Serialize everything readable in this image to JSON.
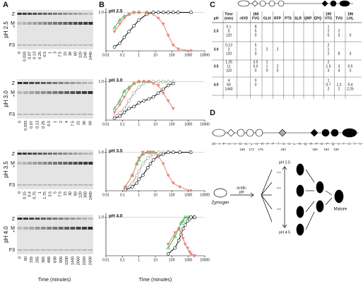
{
  "panels": [
    "A",
    "B",
    "C",
    "D"
  ],
  "gel_xlabel": "Time (minutes)",
  "plot_xlabel": "Time (minutes)",
  "gels": [
    {
      "ph": "pH 2.5",
      "markers": [
        "Z",
        "M",
        "*",
        "F3"
      ],
      "lanes": [
        "0",
        "0.033",
        "0.07",
        "0.13",
        "0.25",
        "0.5",
        "1",
        "3",
        "7.5",
        "15",
        "30",
        "60",
        "120",
        "240",
        "1440"
      ]
    },
    {
      "ph": "pH 3.0",
      "markers": [
        "Z",
        "M",
        "*",
        "F3"
      ],
      "lanes": [
        "0",
        "0.033",
        "0.07",
        "0.13",
        "0.25",
        "0.5",
        "1",
        "2",
        "4",
        "7.5",
        "15",
        "30",
        "60"
      ]
    },
    {
      "ph": "pH 3.5",
      "markers": [
        "Z",
        "M",
        "*",
        "F3"
      ],
      "lanes": [
        "0",
        "0.15",
        "0.4",
        "0.75",
        "1",
        "1.75",
        "3.5",
        "5",
        "7.5",
        "15",
        "30",
        "60",
        "120",
        "300",
        "1400"
      ]
    },
    {
      "ph": "pH 4.0",
      "markers": [
        "Z",
        "M",
        "*",
        "F3"
      ],
      "lanes": [
        "0",
        "60",
        "155",
        "265",
        "365",
        "480",
        "638",
        "900",
        "1200",
        "1440",
        "2060",
        "2250",
        "2400"
      ]
    }
  ],
  "chart_data": [
    {
      "type": "line",
      "label": "pH 2.5",
      "log_x": true,
      "xlim": [
        0.01,
        10000
      ],
      "ylim": [
        0,
        1.1
      ],
      "xticks": [
        0.01,
        0.1,
        1,
        10,
        100,
        1000,
        10000
      ],
      "yticks": [
        {
          "value": 1,
          "label": "1.0"
        }
      ],
      "x": [
        0.033,
        0.07,
        0.13,
        0.25,
        0.5,
        1,
        3,
        7.5,
        15,
        30,
        60,
        120,
        240,
        1440
      ],
      "series": [
        {
          "color": "#3cb44b",
          "marker": "triangle-up",
          "values": [
            0.6,
            0.8,
            0.9,
            0.95,
            1,
            1,
            1,
            1,
            1,
            1,
            1,
            1,
            1,
            1
          ]
        },
        {
          "color": "#000000",
          "marker": "circle",
          "values": [
            0.1,
            0.2,
            0.35,
            0.5,
            0.65,
            0.8,
            0.95,
            1,
            1,
            1,
            1,
            1,
            1,
            1
          ]
        },
        {
          "color": "#e8837a",
          "marker": "triangle-down",
          "values": [
            0.5,
            0.7,
            0.85,
            0.95,
            1,
            1,
            1,
            0.95,
            0.85,
            0.7,
            0.4,
            0.15,
            0.05,
            0
          ]
        }
      ]
    },
    {
      "type": "line",
      "label": "pH 3.0",
      "log_x": true,
      "xlim": [
        0.01,
        10000
      ],
      "ylim": [
        0,
        1.1
      ],
      "xticks": [
        0.01,
        0.1,
        1,
        10,
        100,
        1000,
        10000
      ],
      "yticks": [
        {
          "value": 1,
          "label": "1.0"
        }
      ],
      "x": [
        0.033,
        0.07,
        0.13,
        0.25,
        0.5,
        1,
        2,
        4,
        7.5,
        15,
        30,
        60,
        120
      ],
      "series": [
        {
          "color": "#3cb44b",
          "marker": "triangle-up",
          "values": [
            0.3,
            0.5,
            0.75,
            0.85,
            0.95,
            1,
            1,
            1,
            1,
            1,
            1,
            1,
            1
          ]
        },
        {
          "color": "#999999",
          "marker": "circle",
          "values": [
            0.1,
            0.2,
            0.3,
            0.5,
            0.7,
            0.85,
            0.95,
            1,
            1,
            1,
            1,
            1,
            1
          ]
        },
        {
          "color": "#000000",
          "marker": "circle",
          "values": [
            0.05,
            0.1,
            0.2,
            0.3,
            0.35,
            0.45,
            0.5,
            0.55,
            0.6,
            0.7,
            0.8,
            0.9,
            0.95
          ]
        },
        {
          "color": "#e8837a",
          "marker": "triangle-down",
          "values": [
            0.2,
            0.4,
            0.6,
            0.8,
            0.95,
            1,
            1,
            1,
            0.95,
            0.9,
            0.7,
            0.5,
            0.3
          ]
        }
      ]
    },
    {
      "type": "line",
      "label": "pH 3.5",
      "log_x": true,
      "xlim": [
        0.01,
        10000
      ],
      "ylim": [
        0,
        1.1
      ],
      "xticks": [
        0.01,
        0.1,
        1,
        10,
        100,
        1000,
        10000
      ],
      "yticks": [
        {
          "value": 1,
          "label": "1.0"
        }
      ],
      "x": [
        0.15,
        0.4,
        0.75,
        1,
        1.75,
        3.5,
        5,
        7.5,
        15,
        30,
        60,
        120,
        300,
        1400
      ],
      "series": [
        {
          "color": "#3cb44b",
          "marker": "triangle-up",
          "values": [
            0.1,
            0.4,
            0.7,
            0.8,
            0.95,
            1,
            1,
            1,
            1,
            1,
            1,
            1,
            1,
            1
          ]
        },
        {
          "color": "#999999",
          "marker": "circle",
          "values": [
            0.05,
            0.2,
            0.4,
            0.5,
            0.7,
            0.85,
            0.9,
            0.95,
            1,
            1,
            1,
            1,
            1,
            1
          ]
        },
        {
          "color": "#000000",
          "marker": "circle",
          "values": [
            0.02,
            0.1,
            0.2,
            0.3,
            0.4,
            0.6,
            0.7,
            0.8,
            0.9,
            0.95,
            1,
            1,
            1,
            1
          ]
        },
        {
          "color": "#e8837a",
          "marker": "triangle-down",
          "values": [
            0.1,
            0.4,
            0.7,
            0.85,
            1,
            1,
            1,
            1,
            0.9,
            0.7,
            0.4,
            0.2,
            0.1,
            0
          ]
        }
      ]
    },
    {
      "type": "line",
      "label": "pH 4.0",
      "log_x": true,
      "xlim": [
        0.01,
        10000
      ],
      "ylim": [
        0,
        1.1
      ],
      "xticks": [
        0.01,
        0.1,
        1,
        10,
        100,
        1000,
        10000
      ],
      "yticks": [
        {
          "value": 1,
          "label": "1.0"
        }
      ],
      "x": [
        60,
        155,
        265,
        365,
        480,
        638,
        900,
        1200,
        1440,
        2250,
        2400
      ],
      "series": [
        {
          "color": "#3cb44b",
          "marker": "triangle-up",
          "values": [
            0.2,
            0.5,
            0.7,
            0.85,
            0.9,
            1,
            1,
            1,
            1,
            1,
            1
          ]
        },
        {
          "color": "#000000",
          "marker": "circle",
          "values": [
            0.05,
            0.2,
            0.4,
            0.55,
            0.7,
            0.8,
            0.9,
            0.95,
            1,
            1,
            1
          ]
        },
        {
          "color": "#e8837a",
          "marker": "triangle-down",
          "values": [
            0.3,
            0.6,
            0.7,
            0.6,
            0.45,
            0.3,
            0.2,
            0.1,
            0.05,
            0,
            0
          ]
        }
      ]
    }
  ],
  "table": {
    "header": [
      [
        "pH"
      ],
      [
        "Time",
        "(min)"
      ],
      [
        "-HVD"
      ],
      [
        "168",
        "FVG"
      ],
      [
        "GLH"
      ],
      [
        "RFP"
      ],
      [
        "PTS"
      ],
      [
        "SLR"
      ],
      [
        "QRP"
      ],
      [
        "EPQ"
      ],
      [
        "190",
        "VTG"
      ],
      [
        "TVG"
      ],
      [
        "196",
        "LHL"
      ]
    ],
    "rows": [
      {
        "cells": [
          [
            null,
            "2.5"
          ],
          [
            "0.1",
            "5",
            "120"
          ],
          [
            null
          ],
          [
            "8",
            "5",
            "0"
          ],
          [
            null
          ],
          [
            null
          ],
          [
            null
          ],
          [
            null
          ],
          [
            null
          ],
          [
            null
          ],
          [
            "1",
            "2",
            "5"
          ],
          [
            null,
            "2",
            "3"
          ],
          [
            null,
            null,
            "0"
          ]
        ]
      },
      {
        "cells": [
          [
            null,
            "3.0"
          ],
          [
            "0.13",
            "2",
            "120"
          ],
          [
            null
          ],
          [
            "5",
            "1",
            "0"
          ],
          [
            null,
            "2"
          ],
          [
            null,
            "2"
          ],
          [
            null
          ],
          [
            null
          ],
          [
            null
          ],
          [
            null
          ],
          [
            "2",
            "1",
            "2"
          ],
          [
            null,
            null,
            "8"
          ],
          [
            null,
            null,
            "3"
          ]
        ]
      },
      {
        "cells": [
          [
            null,
            "3.5"
          ],
          [
            "1.25",
            "11",
            "120"
          ],
          [
            null
          ],
          [
            "3.5",
            "0.5",
            "0"
          ],
          [
            "1",
            "1",
            "0"
          ],
          [
            null,
            "2",
            "0"
          ],
          [
            null
          ],
          [
            null
          ],
          [
            null
          ],
          [
            null
          ],
          [
            "2",
            "1.5",
            "3"
          ],
          [
            null,
            "3",
            "4"
          ],
          [
            null,
            "0.5",
            "3"
          ]
        ]
      },
      {
        "cells": [
          [
            null,
            "4.0"
          ],
          [
            "4",
            "60",
            "1440"
          ],
          [
            null
          ],
          [
            "0",
            "0"
          ],
          [
            null
          ],
          [
            null
          ],
          [
            null
          ],
          [
            null
          ],
          [
            null
          ],
          [
            null
          ],
          [
            "1",
            "0.7",
            "2"
          ],
          [
            null,
            "1.3",
            "2"
          ],
          [
            null,
            "0.4",
            "2.25"
          ]
        ]
      }
    ]
  },
  "diagram": {
    "sequence": "20—I—P—H—V—D—G—L—H—R—F—P—T—S—S—L—R—Q—R—P—E—P—Q—V—T—G—T—V—G—L—H—L—//—503",
    "positions": [
      "169",
      "172",
      "175",
      "182",
      "190",
      "193",
      "196"
    ],
    "trigger": [
      "acidic",
      "pH"
    ],
    "start": "Zymogen",
    "end": "Mature",
    "top_path": "pH 2.5",
    "bottom_path": "pH 4.5"
  }
}
